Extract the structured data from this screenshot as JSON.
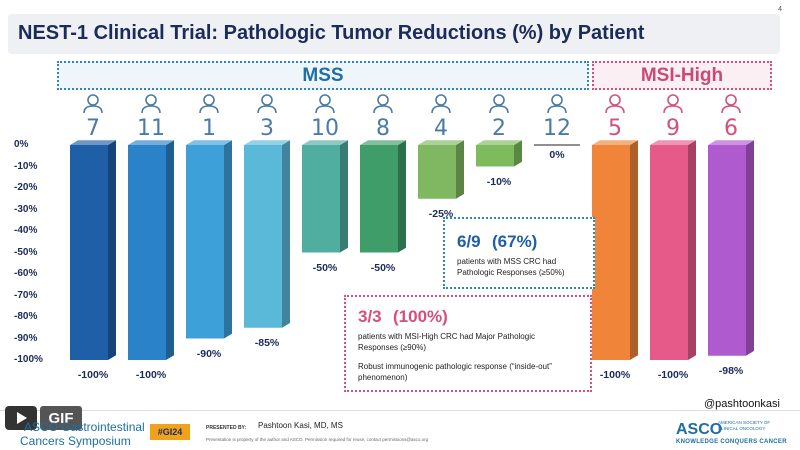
{
  "slide_number": "4",
  "title": "NEST-1 Clinical Trial: Pathologic Tumor Reductions (%) by Patient",
  "groups": {
    "mss": "MSS",
    "msi": "MSI-High"
  },
  "chart_data": {
    "type": "bar",
    "title": "NEST-1 Clinical Trial: Pathologic Tumor Reductions (%) by Patient",
    "xlabel": "",
    "ylabel": "",
    "ylim": [
      -100,
      0
    ],
    "yticks": [
      "0%",
      "-10%",
      "-20%",
      "-30%",
      "-40%",
      "-50%",
      "-60%",
      "-70%",
      "-80%",
      "-90%",
      "-100%"
    ],
    "categories": [
      "7",
      "11",
      "1",
      "3",
      "10",
      "8",
      "4",
      "2",
      "12",
      "5",
      "9",
      "6"
    ],
    "groups": [
      "MSS",
      "MSS",
      "MSS",
      "MSS",
      "MSS",
      "MSS",
      "MSS",
      "MSS",
      "MSS",
      "MSI-High",
      "MSI-High",
      "MSI-High"
    ],
    "values": [
      -100,
      -100,
      -90,
      -85,
      -50,
      -50,
      -25,
      -10,
      0,
      -100,
      -100,
      -98
    ],
    "value_labels": [
      "-100%",
      "-100%",
      "-90%",
      "-85%",
      "-50%",
      "-50%",
      "-25%",
      "-10%",
      "0%",
      "-100%",
      "-100%",
      "-98%"
    ],
    "colors": [
      "#1f5fa8",
      "#2a82c9",
      "#3ea0d8",
      "#5ab8d8",
      "#4fae9f",
      "#3f9d6a",
      "#7fb860",
      "#7dbb5c",
      "#ffffff",
      "#f0853a",
      "#e65a8a",
      "#b05ad0"
    ],
    "grid": false,
    "legend": "none"
  },
  "callouts": {
    "mss": {
      "big_a": "6/9",
      "big_b": "(67%)",
      "text_1": "patients with MSS CRC had",
      "text_2": "Pathologic Responses (≥50%)"
    },
    "msi": {
      "big_a": "3/3",
      "big_b": "(100%)",
      "text_1": "patients with MSI-High CRC had Major Pathologic",
      "text_2": "Responses (≥90%)",
      "text_3": "Robust immunogenic pathologic response (“inside-out”",
      "text_4": "phenomenon)"
    }
  },
  "handle": "@pashtoonkasi",
  "footer": {
    "gif_label": "GIF",
    "symposium_line1": "ASCO Gastrointestinal",
    "symposium_line2": "Cancers Symposium",
    "hashtag": "#GI24",
    "presented_by": "PRESENTED BY:",
    "presenter": "Pashtoon Kasi, MD, MS",
    "disclaimer": "Presentation is property of the author and ASCO. Permission required for reuse; contact permissions@asco.org",
    "asco": "ASCO",
    "asco_side": "AMERICAN SOCIETY OF CLINICAL ONCOLOGY",
    "asco_tagline": "KNOWLEDGE CONQUERS CANCER"
  }
}
